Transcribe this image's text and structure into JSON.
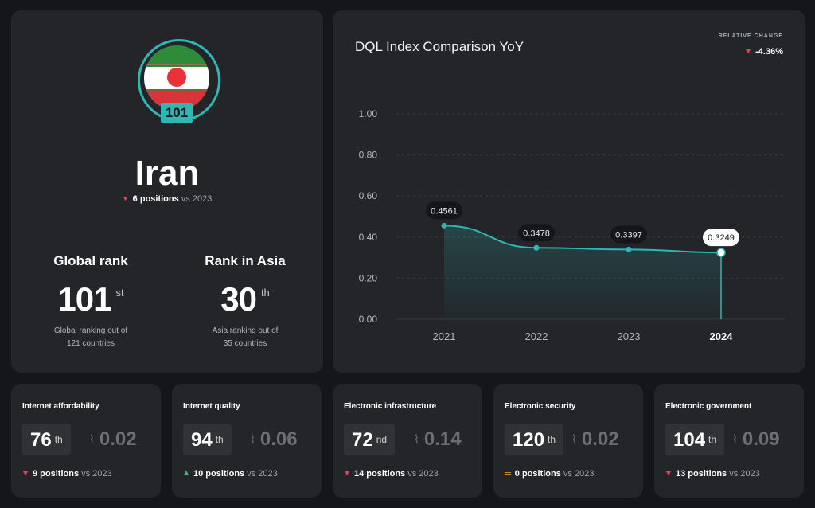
{
  "country": {
    "name": "Iran",
    "badge_rank": "101",
    "change_text": "6 positions",
    "change_suffix": "vs 2023",
    "flag_colors": [
      "#2e8b3a",
      "#ffffff",
      "#d8353a"
    ]
  },
  "global_rank": {
    "label": "Global rank",
    "value": "101",
    "suffix": "st",
    "desc_1": "Global ranking out of",
    "desc_2": "121 countries"
  },
  "asia_rank": {
    "label": "Rank in Asia",
    "value": "30",
    "suffix": "th",
    "desc_1": "Asia ranking out of",
    "desc_2": "35 countries"
  },
  "chart_header": {
    "title": "DQL Index Comparison YoY",
    "relative_label": "RELATIVE CHANGE",
    "relative_value": "-4.36%"
  },
  "chart_data": {
    "type": "line",
    "x": [
      "2021",
      "2022",
      "2023",
      "2024"
    ],
    "values": [
      0.4561,
      0.3478,
      0.3397,
      0.3249
    ],
    "value_labels": [
      "0.4561",
      "0.3478",
      "0.3397",
      "0.3249"
    ],
    "yticks": [
      "0.00",
      "0.20",
      "0.40",
      "0.60",
      "0.80",
      "1.00"
    ],
    "ylim": [
      0,
      1
    ],
    "highlight_index": 3,
    "line_color": "#2fb7b5",
    "grid": true
  },
  "metrics": [
    {
      "title": "Internet affordability",
      "rank": "76",
      "suffix": "th",
      "score": "0.02",
      "direction": "down",
      "change": "9 positions",
      "vs": "vs 2023"
    },
    {
      "title": "Internet quality",
      "rank": "94",
      "suffix": "th",
      "score": "0.06",
      "direction": "up",
      "change": "10 positions",
      "vs": "vs 2023"
    },
    {
      "title": "Electronic infrastructure",
      "rank": "72",
      "suffix": "nd",
      "score": "0.14",
      "direction": "down",
      "change": "14 positions",
      "vs": "vs 2023"
    },
    {
      "title": "Electronic security",
      "rank": "120",
      "suffix": "th",
      "score": "0.02",
      "direction": "same",
      "change": "0 positions",
      "vs": "vs 2023"
    },
    {
      "title": "Electronic government",
      "rank": "104",
      "suffix": "th",
      "score": "0.09",
      "direction": "down",
      "change": "13 positions",
      "vs": "vs 2023"
    }
  ]
}
